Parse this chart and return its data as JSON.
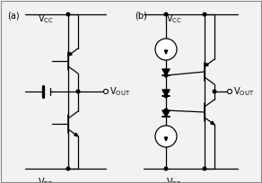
{
  "fig_width": 2.92,
  "fig_height": 2.04,
  "dpi": 100,
  "bg_color": "#f2f2f2",
  "line_color": "black",
  "line_width": 0.9
}
